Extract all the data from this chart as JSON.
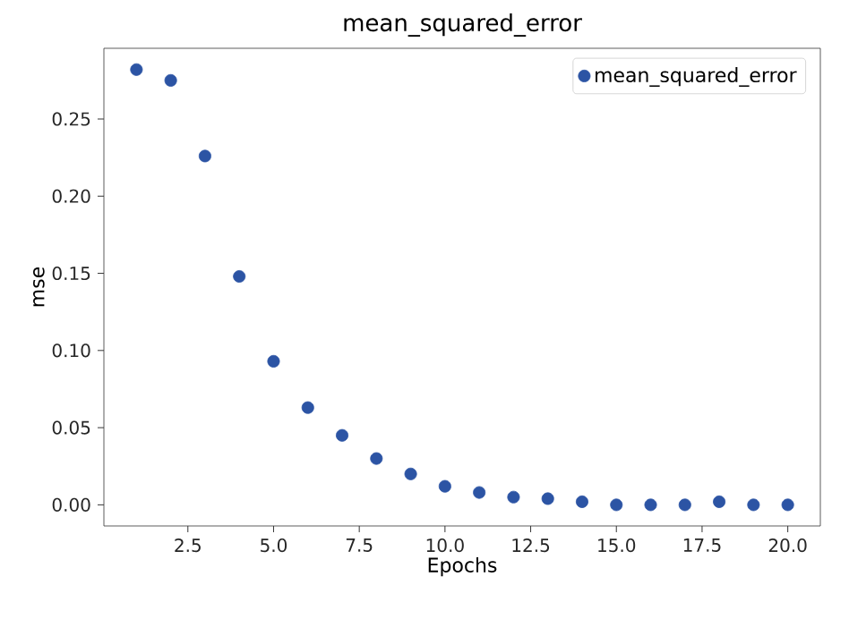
{
  "chart_data": {
    "type": "scatter",
    "title": "mean_squared_error",
    "xlabel": "Epochs",
    "ylabel": "mse",
    "x": [
      1,
      2,
      3,
      4,
      5,
      6,
      7,
      8,
      9,
      10,
      11,
      12,
      13,
      14,
      15,
      16,
      17,
      18,
      19,
      20
    ],
    "series": [
      {
        "name": "mean_squared_error",
        "color": "#2c54a4",
        "values": [
          0.282,
          0.275,
          0.226,
          0.148,
          0.093,
          0.063,
          0.045,
          0.03,
          0.02,
          0.012,
          0.008,
          0.005,
          0.004,
          0.002,
          0.0,
          0.0,
          0.0,
          0.002,
          0.0,
          0.0
        ]
      }
    ],
    "xlim": [
      0.05,
      20.95
    ],
    "ylim": [
      -0.0137,
      0.2958
    ],
    "xticks": [
      {
        "value": 2.5,
        "label": "2.5"
      },
      {
        "value": 5,
        "label": "5.0"
      },
      {
        "value": 7.5,
        "label": "7.5"
      },
      {
        "value": 10,
        "label": "10.0"
      },
      {
        "value": 12.5,
        "label": "12.5"
      },
      {
        "value": 15,
        "label": "15.0"
      },
      {
        "value": 17.5,
        "label": "17.5"
      },
      {
        "value": 20,
        "label": "20.0"
      }
    ],
    "yticks": [
      {
        "value": 0,
        "label": "0.00"
      },
      {
        "value": 0.05,
        "label": "0.05"
      },
      {
        "value": 0.1,
        "label": "0.10"
      },
      {
        "value": 0.15,
        "label": "0.15"
      },
      {
        "value": 0.2,
        "label": "0.20"
      },
      {
        "value": 0.25,
        "label": "0.25"
      }
    ],
    "legend": "top right",
    "marker": "circle",
    "grid": false
  }
}
